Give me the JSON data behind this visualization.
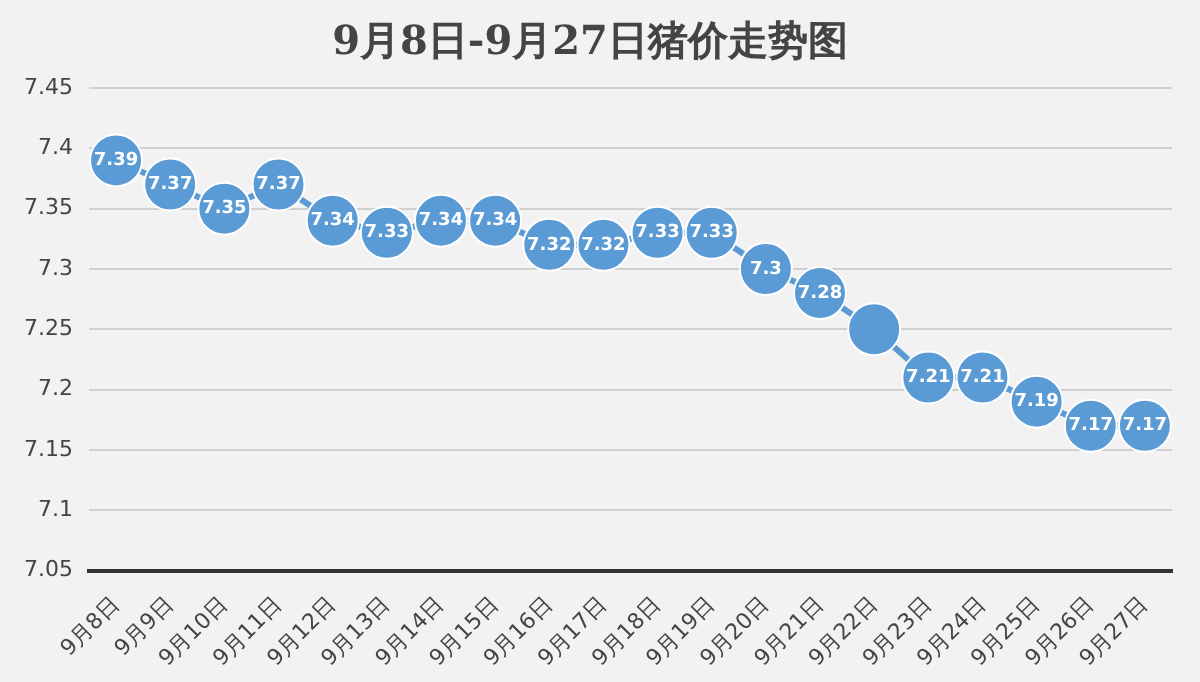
{
  "chart_data": {
    "type": "line",
    "title": "9月8日-9月27日猪价走势图",
    "categories": [
      "9月8日",
      "9月9日",
      "9月10日",
      "9月11日",
      "9月12日",
      "9月13日",
      "9月14日",
      "9月15日",
      "9月16日",
      "9月17日",
      "9月18日",
      "9月19日",
      "9月20日",
      "9月21日",
      "9月22日",
      "9月23日",
      "9月24日",
      "9月25日",
      "9月26日",
      "9月27日"
    ],
    "series": [
      {
        "color": "#5b9bd5",
        "values": [
          7.39,
          7.37,
          7.35,
          7.37,
          7.34,
          7.33,
          7.34,
          7.34,
          7.32,
          7.32,
          7.33,
          7.33,
          7.3,
          7.28,
          7.25,
          7.21,
          7.21,
          7.19,
          7.17,
          7.17
        ],
        "value_labels": [
          "7.39",
          "7.37",
          "7.35",
          "7.37",
          "7.34",
          "7.33",
          "7.34",
          "7.34",
          "7.32",
          "7.32",
          "7.33",
          "7.33",
          "7.3",
          "7.28",
          null,
          "7.21",
          "7.21",
          "7.19",
          "7.17",
          "7.17"
        ]
      }
    ],
    "ylim": [
      7.05,
      7.45
    ],
    "yticks": [
      7.05,
      7.1,
      7.15,
      7.2,
      7.25,
      7.3,
      7.35,
      7.4,
      7.45
    ],
    "grid": "y",
    "legend": false,
    "marker": "circle",
    "line_style": "solid"
  }
}
